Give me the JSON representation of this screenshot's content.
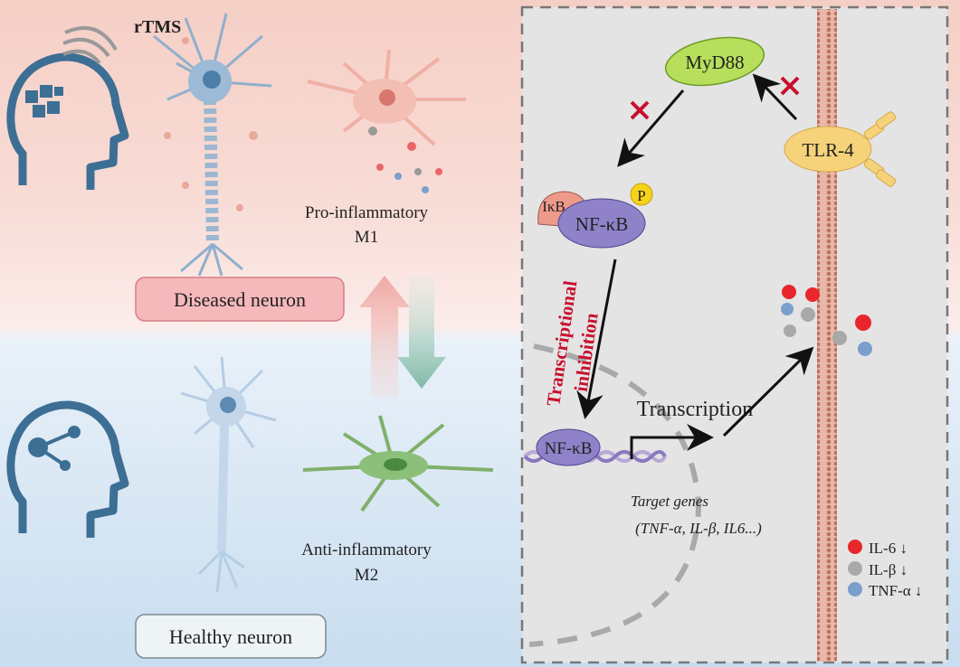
{
  "left": {
    "rtms_label": "rTMS",
    "m1_label_line1": "Pro-inflammatory",
    "m1_label_line2": "M1",
    "m2_label_line1": "Anti-inflammatory",
    "m2_label_line2": "M2",
    "diseased_label": "Diseased neuron",
    "healthy_label": "Healthy neuron"
  },
  "right": {
    "myd88": "MyD88",
    "tlr4": "TLR-4",
    "ikb": "IκB",
    "nfkb_complex": "NF-κB",
    "phospho": "P",
    "nfkb_dna": "NF-κB",
    "inhibition_line1": "Transcriptional",
    "inhibition_line2": "inhibition",
    "transcription": "Transcription",
    "target_genes_line1": "Target genes",
    "target_genes_line2": "(TNF-α, IL-β, IL6...)"
  },
  "legend": [
    {
      "label": "IL-6 ↓",
      "color": "#e8262b"
    },
    {
      "label": "IL-β ↓",
      "color": "#a9a9a9"
    },
    {
      "label": "TNF-α ↓",
      "color": "#7b9fcc"
    }
  ],
  "colors": {
    "inhibition_red": "#c8102e",
    "myd88_green": "#b7df5c",
    "tlr4_yellow": "#f6d27a",
    "nfkb_purple": "#8f82c9",
    "membrane": "#c0705f"
  }
}
